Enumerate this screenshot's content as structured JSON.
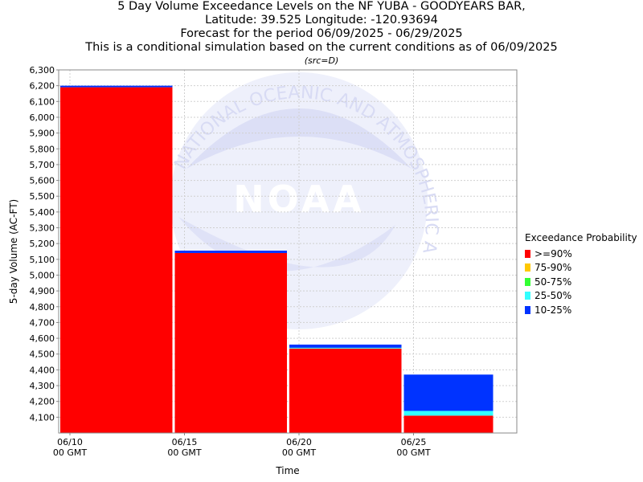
{
  "title_lines": [
    "5 Day Volume Exceedance Levels on the NF YUBA - GOODYEARS BAR,",
    "Latitude: 39.525 Longitude: -120.93694",
    "Forecast for the period 06/09/2025 - 06/29/2025",
    "This is a conditional simulation based on the current conditions as of 06/09/2025"
  ],
  "subtitle": "(src=D)",
  "legend": {
    "title": "Exceedance Probability",
    "items": [
      {
        "label": ">=90%",
        "color": "#ff0000"
      },
      {
        "label": "75-90%",
        "color": "#ffc800"
      },
      {
        "label": "50-75%",
        "color": "#33ff33"
      },
      {
        "label": "25-50%",
        "color": "#33ffff"
      },
      {
        "label": "10-25%",
        "color": "#0033ff"
      }
    ]
  },
  "chart_data": {
    "type": "bar",
    "stacked": true,
    "title": "5 Day Volume Exceedance Levels on the NF YUBA - GOODYEARS BAR,",
    "xlabel": "Time",
    "ylabel": "5-day Volume (AC-FT)",
    "ylim": [
      4000,
      6300
    ],
    "yticks": [
      4100,
      4200,
      4300,
      4400,
      4500,
      4600,
      4700,
      4800,
      4900,
      5000,
      5100,
      5200,
      5300,
      5400,
      5500,
      5600,
      5700,
      5800,
      5900,
      6000,
      6100,
      6200,
      6300
    ],
    "ytick_labels": [
      "4,100",
      "4,200",
      "4,300",
      "4,400",
      "4,500",
      "4,600",
      "4,700",
      "4,800",
      "4,900",
      "5,000",
      "5,100",
      "5,200",
      "5,300",
      "5,400",
      "5,500",
      "5,600",
      "5,700",
      "5,800",
      "5,900",
      "6,000",
      "6,100",
      "6,200",
      "6,300"
    ],
    "xticks": [
      {
        "line1": "06/10",
        "line2": "00 GMT"
      },
      {
        "line1": "06/15",
        "line2": "00 GMT"
      },
      {
        "line1": "06/20",
        "line2": "00 GMT"
      },
      {
        "line1": "06/25",
        "line2": "00 GMT"
      }
    ],
    "categories": [
      "06/10 - 06/15",
      "06/15 - 06/20",
      "06/20 - 06/25",
      "06/25 - 06/29"
    ],
    "bars": [
      {
        "bands": [
          {
            "level": ">=90%",
            "top": 6190
          },
          {
            "level": "75-90%",
            "top": 6190
          },
          {
            "level": "50-75%",
            "top": 6190
          },
          {
            "level": "25-50%",
            "top": 6190
          },
          {
            "level": "10-25%",
            "top": 6200
          }
        ]
      },
      {
        "bands": [
          {
            "level": ">=90%",
            "top": 5140
          },
          {
            "level": "75-90%",
            "top": 5140
          },
          {
            "level": "50-75%",
            "top": 5140
          },
          {
            "level": "25-50%",
            "top": 5140
          },
          {
            "level": "10-25%",
            "top": 5155
          }
        ]
      },
      {
        "bands": [
          {
            "level": ">=90%",
            "top": 4535
          },
          {
            "level": "75-90%",
            "top": 4535
          },
          {
            "level": "50-75%",
            "top": 4535
          },
          {
            "level": "25-50%",
            "top": 4540
          },
          {
            "level": "10-25%",
            "top": 4560
          }
        ]
      },
      {
        "bands": [
          {
            "level": ">=90%",
            "top": 4110
          },
          {
            "level": "75-90%",
            "top": 4110
          },
          {
            "level": "50-75%",
            "top": 4110
          },
          {
            "level": "25-50%",
            "top": 4140
          },
          {
            "level": "10-25%",
            "top": 4370
          }
        ]
      }
    ],
    "grid": true,
    "legend_position": "right",
    "watermark": "NOAA",
    "watermark_ring_text": "NATIONAL OCEANIC AND ATMOSPHERIC ADMINISTRATION"
  }
}
